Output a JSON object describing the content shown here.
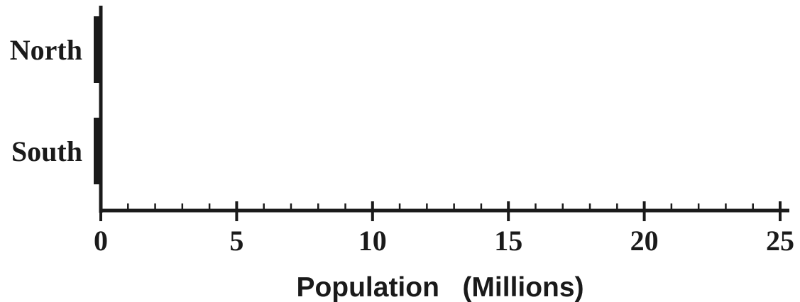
{
  "chart_data": {
    "type": "bar",
    "orientation": "horizontal",
    "categories": [
      "North",
      "South"
    ],
    "values": [
      0,
      0
    ],
    "xlabel": "Population   (Millions)",
    "ylabel": "",
    "xlim": [
      0,
      25
    ],
    "major_ticks": [
      "0",
      "5",
      "10",
      "15",
      "20",
      "25"
    ],
    "minor_tick_step": 1,
    "grid": false,
    "legend": "none",
    "colors": {
      "bar": "#1a1a1a",
      "axis": "#1a1a1a",
      "text": "#1a1a1a"
    }
  }
}
